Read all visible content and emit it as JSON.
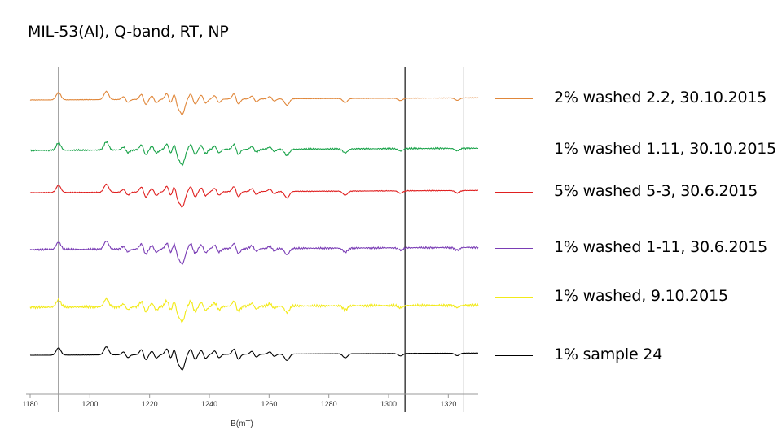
{
  "slide_title": "MIL-53(Al), Q-band, RT, NP",
  "chart_data": {
    "type": "line",
    "title": "MIL-53(Al), Q-band, RT, NP",
    "xlabel": "B(mT)",
    "ylabel": "",
    "xlim": [
      1180,
      1330
    ],
    "x_ticks": [
      1180,
      1200,
      1220,
      1240,
      1260,
      1280,
      1300,
      1320
    ],
    "x_tick_labels": [
      "1180",
      "1200",
      "1220",
      "1240",
      "1260",
      "1280",
      "1300",
      "1320"
    ],
    "vertical_reference_lines": [
      1189.5,
      1305.5,
      1325.0
    ],
    "legend_position": "right",
    "series": [
      {
        "name": "2% washed 2.2, 30.10.2015",
        "color": "#e0873a",
        "noise": 0.3
      },
      {
        "name": "1% washed 1.11, 30.10.2015",
        "color": "#1aa34a",
        "noise": 1.0
      },
      {
        "name": "5% washed 5-3, 30.6.2015",
        "color": "#e02020",
        "noise": 0.5
      },
      {
        "name": "1% washed 1-11, 30.6.2015",
        "color": "#7a3db5",
        "noise": 1.2
      },
      {
        "name": "1% washed, 9.10.2015",
        "color": "#f2ea19",
        "noise": 1.6
      },
      {
        "name": "1% sample 24",
        "color": "#000000",
        "noise": 0.15
      }
    ],
    "spectral_features": [
      {
        "b": 1189.5,
        "type": "peak",
        "amp": 9
      },
      {
        "b": 1205.5,
        "type": "peak",
        "amp": 10
      },
      {
        "b": 1212.0,
        "type": "deriv",
        "amp": 5
      },
      {
        "b": 1218.0,
        "type": "deriv",
        "amp": 9
      },
      {
        "b": 1221.5,
        "type": "deriv",
        "amp": 6
      },
      {
        "b": 1226.5,
        "type": "deriv",
        "amp": 10
      },
      {
        "b": 1228.8,
        "type": "deriv",
        "amp": 12
      },
      {
        "b": 1231.0,
        "type": "trough",
        "amp": 18
      },
      {
        "b": 1234.5,
        "type": "deriv",
        "amp": 9
      },
      {
        "b": 1238.0,
        "type": "deriv",
        "amp": 7
      },
      {
        "b": 1242.5,
        "type": "deriv",
        "amp": 6
      },
      {
        "b": 1249.0,
        "type": "deriv",
        "amp": 9
      },
      {
        "b": 1255.0,
        "type": "deriv",
        "amp": 5
      },
      {
        "b": 1261.0,
        "type": "deriv",
        "amp": 4
      },
      {
        "b": 1266.0,
        "type": "trough",
        "amp": 8
      },
      {
        "b": 1285.5,
        "type": "trough",
        "amp": 5
      },
      {
        "b": 1304.0,
        "type": "trough",
        "amp": 3
      },
      {
        "b": 1323.0,
        "type": "trough",
        "amp": 3
      }
    ]
  }
}
